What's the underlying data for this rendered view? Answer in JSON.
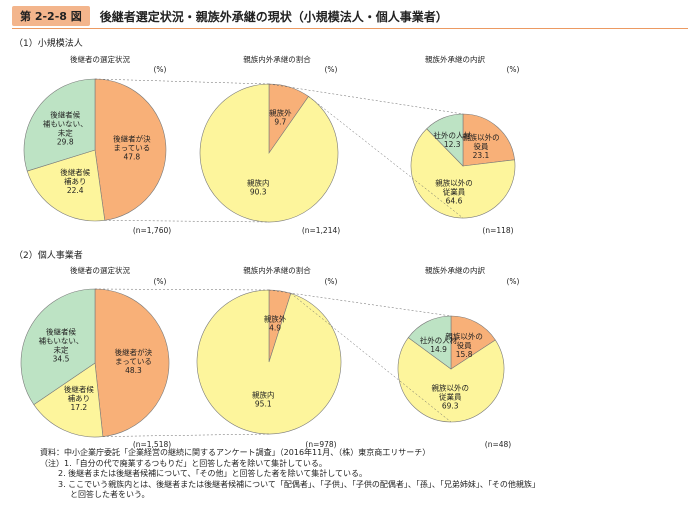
{
  "header": {
    "badge": "第 2-2-8 図",
    "title": "後継者選定状況・親族外承継の現状（小規模法人・個人事業者）"
  },
  "colors": {
    "orange": "#f8b078",
    "green": "#bde3c4",
    "yellow": "#fdf59c",
    "badge": "#f3b58c",
    "rule": "#ec9a62"
  },
  "unit": "(%)",
  "chart_data": [
    {
      "section": "（1）小規模法人",
      "charts": [
        {
          "type": "pie",
          "title": "後継者の選定状況",
          "n": "(n=1,760)",
          "slices": [
            {
              "label": "後継者が決まっている",
              "value": 47.8,
              "color": "#f8b078"
            },
            {
              "label": "後継者候補あり",
              "value": 22.4,
              "color": "#fdf59c"
            },
            {
              "label": "後継者候補もいない、未定",
              "value": 29.8,
              "color": "#bde3c4"
            }
          ]
        },
        {
          "type": "pie",
          "title": "親族内外承継の割合",
          "n": "(n=1,214)",
          "slices": [
            {
              "label": "親族外",
              "value": 9.7,
              "color": "#f8b078"
            },
            {
              "label": "親族内",
              "value": 90.3,
              "color": "#fdf59c"
            }
          ]
        },
        {
          "type": "pie",
          "title": "親族外承継の内訳",
          "n": "(n=118)",
          "slices": [
            {
              "label": "親族以外の役員",
              "value": 23.1,
              "color": "#f8b078"
            },
            {
              "label": "親族以外の従業員",
              "value": 64.6,
              "color": "#fdf59c"
            },
            {
              "label": "社外の人材",
              "value": 12.3,
              "color": "#bde3c4"
            }
          ]
        }
      ]
    },
    {
      "section": "（2）個人事業者",
      "charts": [
        {
          "type": "pie",
          "title": "後継者の選定状況",
          "n": "(n=1,518)",
          "slices": [
            {
              "label": "後継者が決まっている",
              "value": 48.3,
              "color": "#f8b078"
            },
            {
              "label": "後継者候補あり",
              "value": 17.2,
              "color": "#fdf59c"
            },
            {
              "label": "後継者候補もいない、未定",
              "value": 34.5,
              "color": "#bde3c4"
            }
          ]
        },
        {
          "type": "pie",
          "title": "親族内外承継の割合",
          "n": "(n=978)",
          "slices": [
            {
              "label": "親族外",
              "value": 4.9,
              "color": "#f8b078"
            },
            {
              "label": "親族内",
              "value": 95.1,
              "color": "#fdf59c"
            }
          ]
        },
        {
          "type": "pie",
          "title": "親族外承継の内訳",
          "n": "(n=48)",
          "slices": [
            {
              "label": "親族以外の役員",
              "value": 15.8,
              "color": "#f8b078"
            },
            {
              "label": "親族以外の従業員",
              "value": 69.3,
              "color": "#fdf59c"
            },
            {
              "label": "社外の人材",
              "value": 14.9,
              "color": "#bde3c4"
            }
          ]
        }
      ]
    }
  ],
  "notes": [
    "資料：中小企業庁委託「企業経営の継続に関するアンケート調査」（2016年11月、（株）東京商工リサーチ）",
    "（注）1.「自分の代で廃業するつもりだ」と回答した者を除いて集計している。",
    "2. 後継者または後継者候補について、「その他」と回答した者を除いて集計している。",
    "3. ここでいう親族内とは、後継者または後継者候補について「配偶者」、「子供」、「子供の配偶者」、「孫」、「兄弟姉妹」、「その他親族」",
    "と回答した者をいう。"
  ]
}
